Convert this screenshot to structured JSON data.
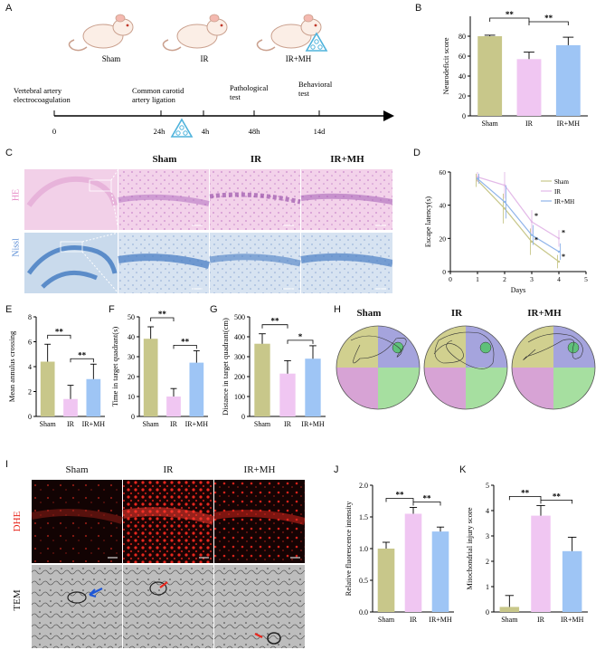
{
  "panels": {
    "A": {
      "label": "A",
      "groups": [
        "Sham",
        "IR",
        "IR+MH"
      ],
      "timeline": {
        "events": [
          {
            "label": "Vertebral artery\nelectrocoagulation",
            "tick": "0"
          },
          {
            "label": "Common carotid\nartery ligation",
            "tick": "24h"
          },
          {
            "label": "",
            "tick": "4h"
          },
          {
            "label": "Pathological\ntest",
            "tick": "48h"
          },
          {
            "label": "Behavioral\ntest",
            "tick": "14d"
          }
        ]
      }
    },
    "B": {
      "label": "B"
    },
    "C": {
      "label": "C",
      "columns": [
        "Sham",
        "IR",
        "IR+MH"
      ],
      "rows": [
        "HE",
        "Nissl"
      ]
    },
    "D": {
      "label": "D"
    },
    "E": {
      "label": "E"
    },
    "F": {
      "label": "F"
    },
    "G": {
      "label": "G"
    },
    "H": {
      "label": "H",
      "groups": [
        "Sham",
        "IR",
        "IR+MH"
      ]
    },
    "I": {
      "label": "I",
      "columns": [
        "Sham",
        "IR",
        "IR+MH"
      ],
      "rows": [
        "DHE",
        "TEM"
      ]
    },
    "J": {
      "label": "J"
    },
    "K": {
      "label": "K"
    }
  },
  "colors": {
    "sham": "#c8c78a",
    "ir": "#f0c6f2",
    "irmh": "#9ec5f5",
    "quadrant_tl": "#d1d08f",
    "quadrant_tr": "#a5a4dd",
    "quadrant_bl": "#d7a3d5",
    "quadrant_br": "#a6dfa0",
    "he": "#f1b6e0",
    "nissl": "#7ea9da",
    "dhe": "#e8271e"
  },
  "chart_data": [
    {
      "id": "B",
      "type": "bar",
      "categories": [
        "Sham",
        "IR",
        "IR+MH"
      ],
      "values": [
        80,
        57,
        71
      ],
      "errors": [
        1,
        7,
        8
      ],
      "ylabel": "Neurodeficit score",
      "ylim": [
        0,
        100
      ],
      "yticks": [
        "0",
        "20",
        "40",
        "60",
        "80"
      ],
      "significance": [
        {
          "from": 0,
          "to": 1,
          "text": "**"
        },
        {
          "from": 1,
          "to": 2,
          "text": "**"
        }
      ]
    },
    {
      "id": "D",
      "type": "line",
      "xlabel": "Days",
      "ylabel": "Escape latency(s)",
      "xlim": [
        0,
        5
      ],
      "ylim": [
        0,
        60
      ],
      "xticks": [
        "0",
        "1",
        "2",
        "3",
        "4",
        "5"
      ],
      "yticks": [
        "0",
        "20",
        "40",
        "60"
      ],
      "x": [
        1,
        2,
        3,
        4
      ],
      "series": [
        {
          "name": "Sham",
          "values": [
            55,
            38,
            18,
            6
          ],
          "errors": [
            4,
            9,
            8,
            4
          ]
        },
        {
          "name": "IR",
          "values": [
            57,
            52,
            30,
            20
          ],
          "errors": [
            3,
            8,
            7,
            5
          ]
        },
        {
          "name": "IR+MH",
          "values": [
            56,
            42,
            22,
            12
          ],
          "errors": [
            3,
            10,
            6,
            5
          ]
        }
      ],
      "annotations": [
        "*",
        "*",
        "*",
        "*"
      ]
    },
    {
      "id": "E",
      "type": "bar",
      "categories": [
        "Sham",
        "IR",
        "IR+MH"
      ],
      "values": [
        4.4,
        1.4,
        3.0
      ],
      "errors": [
        1.4,
        1.1,
        1.2
      ],
      "ylabel": "Mean annulus crossing",
      "ylim": [
        0,
        8
      ],
      "yticks": [
        "0",
        "2",
        "4",
        "6",
        "8"
      ],
      "significance": [
        {
          "from": 0,
          "to": 1,
          "text": "**"
        },
        {
          "from": 1,
          "to": 2,
          "text": "**"
        }
      ]
    },
    {
      "id": "F",
      "type": "bar",
      "categories": [
        "Sham",
        "IR",
        "IR+MH"
      ],
      "values": [
        39,
        10,
        27
      ],
      "errors": [
        6,
        4,
        6
      ],
      "ylabel": "Time in target quadrant(s)",
      "ylim": [
        0,
        50
      ],
      "yticks": [
        "0",
        "10",
        "20",
        "30",
        "40",
        "50"
      ],
      "significance": [
        {
          "from": 0,
          "to": 1,
          "text": "**"
        },
        {
          "from": 1,
          "to": 2,
          "text": "**"
        }
      ]
    },
    {
      "id": "G",
      "type": "bar",
      "categories": [
        "Sham",
        "IR",
        "IR+MH"
      ],
      "values": [
        365,
        215,
        290
      ],
      "errors": [
        50,
        65,
        65
      ],
      "ylabel": "Distance in target quadrant(cm)",
      "ylim": [
        0,
        500
      ],
      "yticks": [
        "0",
        "100",
        "200",
        "300",
        "400",
        "500"
      ],
      "significance": [
        {
          "from": 0,
          "to": 1,
          "text": "**"
        },
        {
          "from": 1,
          "to": 2,
          "text": "*"
        }
      ]
    },
    {
      "id": "J",
      "type": "bar",
      "categories": [
        "Sham",
        "IR",
        "IR+MH"
      ],
      "values": [
        1.0,
        1.55,
        1.27
      ],
      "errors": [
        0.1,
        0.1,
        0.07
      ],
      "ylabel": "Relative fluorescence intensity",
      "ylim": [
        0,
        2.0
      ],
      "yticks": [
        "0.0",
        "0.5",
        "1.0",
        "1.5",
        "2.0"
      ],
      "significance": [
        {
          "from": 0,
          "to": 1,
          "text": "**"
        },
        {
          "from": 1,
          "to": 2,
          "text": "**"
        }
      ]
    },
    {
      "id": "K",
      "type": "bar",
      "categories": [
        "Sham",
        "IR",
        "IR+MH"
      ],
      "values": [
        0.2,
        3.8,
        2.4
      ],
      "errors": [
        0.45,
        0.4,
        0.55
      ],
      "ylabel": "Mitochondrial injury score",
      "ylim": [
        0,
        5
      ],
      "yticks": [
        "0",
        "1",
        "2",
        "3",
        "4",
        "5"
      ],
      "significance": [
        {
          "from": 0,
          "to": 1,
          "text": "**"
        },
        {
          "from": 1,
          "to": 2,
          "text": "**"
        }
      ]
    }
  ]
}
